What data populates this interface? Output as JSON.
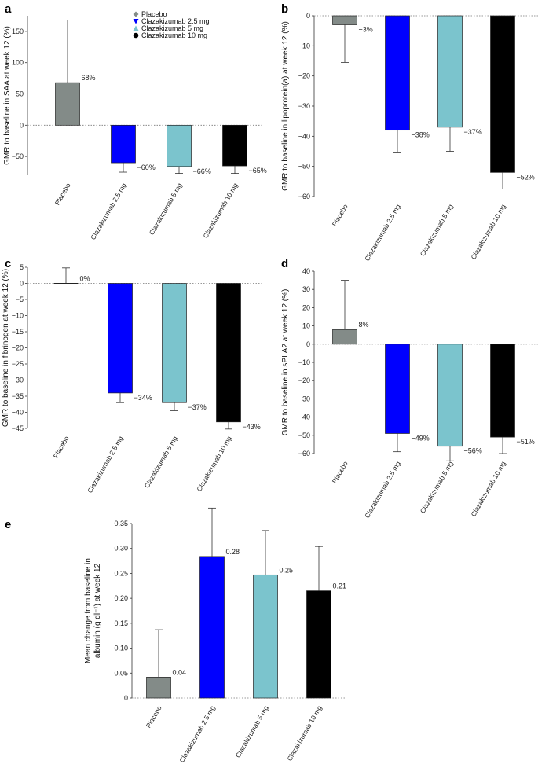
{
  "figure": {
    "colors": {
      "Placebo": "#838b88",
      "Clazakizumab 2.5 mg": "#0000ff",
      "Clazakizumab 5 mg": "#7bc4cd",
      "Clazakizumab 10 mg": "#000000"
    },
    "legend": [
      "Placebo",
      "Clazakizumab 2.5 mg",
      "Clazakizumab 5 mg",
      "Clazakizumab 10 mg"
    ]
  },
  "chart_data": [
    {
      "panel": "a",
      "type": "bar",
      "categories": [
        "Placebo",
        "Clazakizumab 2.5 mg",
        "Clazakizumab 5 mg",
        "Clazakizumab 10 mg"
      ],
      "values": [
        68,
        -60,
        -66,
        -65
      ],
      "error": [
        100,
        15,
        11,
        12
      ],
      "labels": [
        "68%",
        "−60%",
        "−66%",
        "−65%"
      ],
      "ylabel": "GMR to baseline in SAA at week 12 (%)",
      "ylim": [
        -80,
        175
      ],
      "yticks": [
        -50,
        0,
        50,
        100,
        150
      ],
      "ytick_labels": [
        "−50",
        "0",
        "50",
        "100",
        "150"
      ],
      "legend": true
    },
    {
      "panel": "b",
      "type": "bar",
      "categories": [
        "Placebo",
        "Clazakizumab 2.5 mg",
        "Clazakizumab 5 mg",
        "Clazakizumab 10 mg"
      ],
      "values": [
        -3,
        -38,
        -37,
        -52
      ],
      "error": [
        12.5,
        7.5,
        8,
        5.5
      ],
      "labels": [
        "−3%",
        "−38%",
        "−37%",
        "−52%"
      ],
      "ylabel": "GMR to baseline in lipoprotein(a) at week 12 (%)",
      "ylim": [
        -60,
        0
      ],
      "yticks": [
        -60,
        -50,
        -40,
        -30,
        -20,
        -10,
        0
      ],
      "ytick_labels": [
        "−60",
        "−50",
        "−40",
        "−30",
        "−20",
        "−10",
        "0"
      ],
      "legend": false
    },
    {
      "panel": "c",
      "type": "bar",
      "categories": [
        "Placebo",
        "Clazakizumab 2.5 mg",
        "Clazakizumab 5 mg",
        "Clazakizumab 10 mg"
      ],
      "values": [
        0,
        -34,
        -37,
        -43
      ],
      "error": [
        4.8,
        3,
        2.5,
        2.2
      ],
      "labels": [
        "0%",
        "−34%",
        "−37%",
        "−43%"
      ],
      "ylabel": "GMR to baseline in fibrinogen at week 12 (%)",
      "ylim": [
        -45,
        5
      ],
      "yticks": [
        -45,
        -40,
        -35,
        -30,
        -25,
        -20,
        -15,
        -10,
        -5,
        0,
        5
      ],
      "ytick_labels": [
        "−45",
        "−40",
        "−35",
        "−30",
        "−25",
        "−20",
        "−15",
        "−10",
        "−5",
        "0",
        "5"
      ],
      "legend": false
    },
    {
      "panel": "d",
      "type": "bar",
      "categories": [
        "Placebo",
        "Clazakizumab 2.5 mg",
        "Clazakizumab 5 mg",
        "Clazakizumab 10 mg"
      ],
      "values": [
        8,
        -49,
        -56,
        -51
      ],
      "error": [
        27,
        10,
        8,
        9
      ],
      "labels": [
        "8%",
        "−49%",
        "−56%",
        "−51%"
      ],
      "ylabel": "GMR to baseline in sPLA2 at week 12 (%)",
      "ylim": [
        -60,
        40
      ],
      "yticks": [
        -60,
        -50,
        -40,
        -30,
        -20,
        -10,
        0,
        10,
        20,
        30,
        40
      ],
      "ytick_labels": [
        "−60",
        "−50",
        "−40",
        "−30",
        "−20",
        "−10",
        "0",
        "10",
        "20",
        "30",
        "40"
      ],
      "legend": false
    },
    {
      "panel": "e",
      "type": "bar",
      "categories": [
        "Placebo",
        "Clazakizumab 2.5 mg",
        "Clazakizumab 5 mg",
        "Clazakizumab 10 mg"
      ],
      "values": [
        0.04,
        0.28,
        0.25,
        0.21
      ],
      "plot_values": [
        0.042,
        0.284,
        0.247,
        0.215
      ],
      "error": [
        0.095,
        0.097,
        0.089,
        0.089
      ],
      "labels": [
        "0.04",
        "0.28",
        "0.25",
        "0.21"
      ],
      "ylabel_lines": [
        "Mean change from baseline in",
        "albumin (g dl⁻¹) at week 12"
      ],
      "ylim": [
        0,
        0.35
      ],
      "yticks": [
        0,
        0.05,
        0.1,
        0.15,
        0.2,
        0.25,
        0.3,
        0.35
      ],
      "ytick_labels": [
        "0",
        "0.05",
        "0.10",
        "0.15",
        "0.20",
        "0.25",
        "0.30",
        "0.35"
      ],
      "legend": false
    }
  ]
}
